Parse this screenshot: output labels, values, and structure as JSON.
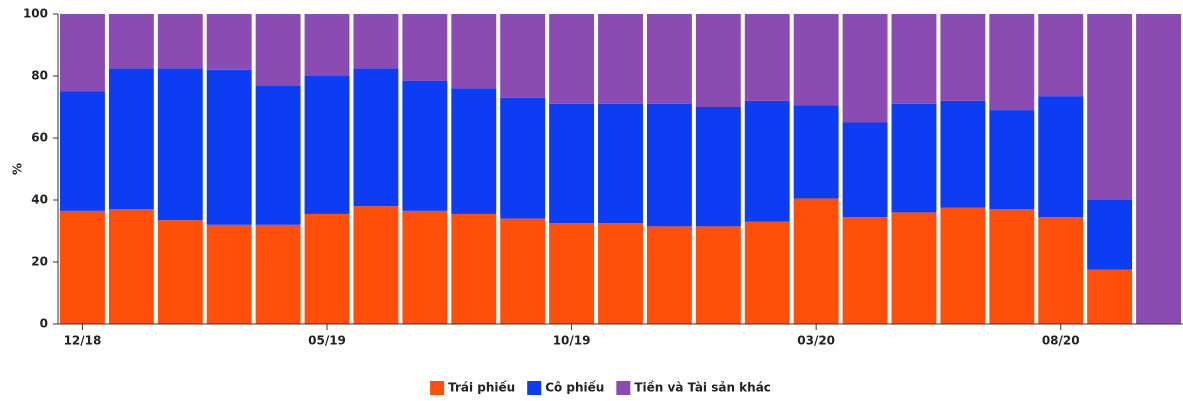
{
  "chart_data": {
    "type": "stacked_bar",
    "categories": [
      "12/18",
      null,
      null,
      null,
      null,
      "05/19",
      null,
      null,
      null,
      null,
      "10/19",
      null,
      null,
      null,
      null,
      "03/20",
      null,
      null,
      null,
      null,
      "08/20",
      null,
      null
    ],
    "series": [
      {
        "name": "Trái phiếu",
        "color": "#ff4f0a",
        "values": [
          36.5,
          37,
          33.5,
          32,
          32,
          35.5,
          38,
          36.5,
          35.5,
          34,
          32.5,
          32.5,
          31.5,
          31.5,
          33,
          40.5,
          34.5,
          36,
          37.5,
          37,
          34.5,
          17.5,
          0
        ]
      },
      {
        "name": "Cô phiếu",
        "color": "#0d3df2",
        "values": [
          38.5,
          45.5,
          49,
          50,
          45,
          44.5,
          44.5,
          42,
          40.5,
          39,
          38.5,
          38.5,
          39.5,
          38.5,
          39,
          30,
          30.5,
          35,
          34.5,
          32,
          39,
          22.5,
          0
        ]
      },
      {
        "name": "Tiền và Tài sản khác",
        "color": "#8a4bb3",
        "values": [
          25,
          17.5,
          17.5,
          18,
          23,
          20,
          17.5,
          21.5,
          24,
          27,
          29,
          29,
          29,
          30,
          28,
          29.5,
          35,
          29,
          28,
          31,
          26.5,
          60,
          100
        ]
      }
    ],
    "y_label": "%",
    "ylim": [
      0,
      100
    ],
    "yticks": [
      0,
      20,
      40,
      60,
      80,
      100
    ],
    "grid": false,
    "legend": "bottom"
  }
}
